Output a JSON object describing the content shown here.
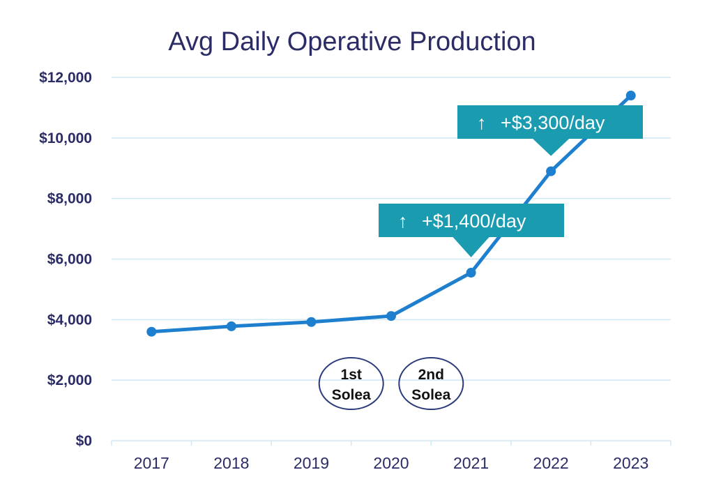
{
  "chart_data": {
    "type": "line",
    "title": "Avg Daily Operative Production",
    "xlabel": "",
    "ylabel": "",
    "categories": [
      "2017",
      "2018",
      "2019",
      "2020",
      "2021",
      "2022",
      "2023"
    ],
    "values": [
      3600,
      3780,
      3920,
      4120,
      5550,
      8900,
      11400
    ],
    "ylim": [
      0,
      12000
    ],
    "yticks": [
      0,
      2000,
      4000,
      6000,
      8000,
      10000,
      12000
    ],
    "ytick_labels": [
      "$0",
      "$2,000",
      "$4,000",
      "$6,000",
      "$8,000",
      "$10,000",
      "$12,000"
    ],
    "grid": true,
    "legend": "none",
    "colors": {
      "line": "#1f7fcf",
      "grid": "#cfe8f4",
      "axis_text": "#2b2c66",
      "callout": "#1a9bb0",
      "bubble_border": "#2b3a7a"
    },
    "markers": [
      {
        "label_lines": [
          "1st",
          "Solea"
        ],
        "category": "2020"
      },
      {
        "label_lines": [
          "2nd",
          "Solea"
        ],
        "category": "2021"
      }
    ],
    "callouts": [
      {
        "arrow": "↑",
        "text": "+$1,400/day",
        "points_to": "2021"
      },
      {
        "arrow": "↑",
        "text": "+$3,300/day",
        "points_to": "2022"
      }
    ]
  }
}
